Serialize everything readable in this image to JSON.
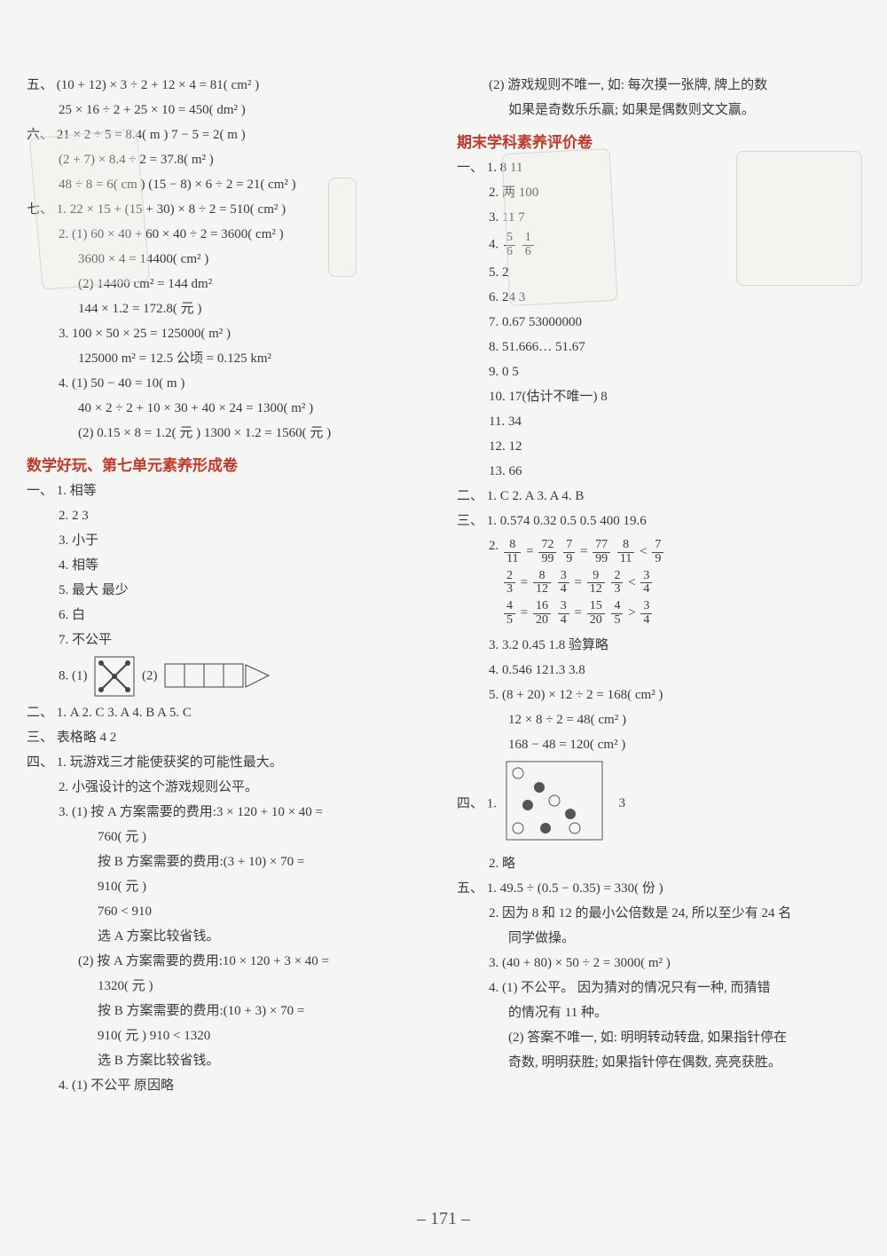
{
  "page_number": "– 171 –",
  "left": {
    "sec5_label": "五、",
    "sec5_a": "(10 + 12) × 3 ÷ 2 + 12 × 4 = 81( cm² )",
    "sec5_b": "25 × 16 ÷ 2 + 25 × 10 = 450( dm² )",
    "sec6_label": "六、",
    "sec6_a": "21 × 2 ÷ 5 = 8.4( m )    7 − 5 = 2( m )",
    "sec6_b": "(2 + 7) × 8.4 ÷ 2 = 37.8( m² )",
    "sec6_c": "48 ÷ 8 = 6( cm )    (15 − 8) × 6 ÷ 2 = 21( cm² )",
    "sec7_label": "七、",
    "sec7_1": "1.  22 × 15 + (15 + 30) × 8 ÷ 2 = 510( cm² )",
    "sec7_2a": "2.  (1) 60 × 40 + 60 × 40 ÷ 2 = 3600( cm² )",
    "sec7_2b": "3600 × 4 = 14400( cm² )",
    "sec7_2c": "(2) 14400 cm² = 144 dm²",
    "sec7_2d": "144 × 1.2 = 172.8( 元 )",
    "sec7_3a": "3.  100 × 50 × 25 = 125000( m² )",
    "sec7_3b": "125000 m² = 12.5 公顷 = 0.125 km²",
    "sec7_4a": "4.  (1) 50 − 40 = 10( m )",
    "sec7_4b": "40 × 2 ÷ 2 + 10 × 30 + 40 × 24 = 1300( m² )",
    "sec7_4c": "(2) 0.15 × 8 = 1.2( 元 )    1300 × 1.2 = 1560( 元 )",
    "heading": "数学好玩、第七单元素养形成卷",
    "p1_label": "一、",
    "p1_1": "1.  相等",
    "p1_2": "2.  2  3",
    "p1_3": "3.  小于",
    "p1_4": "4.  相等",
    "p1_5": "5.  最大  最少",
    "p1_6": "6.  白",
    "p1_7": "7.  不公平",
    "p1_8": "8.  (1)",
    "p1_8b": "(2)",
    "p2_label": "二、",
    "p2": "1. A  2. C  3. A  4. B  A  5. C",
    "p3_label": "三、",
    "p3": "表格略  4  2",
    "p4_label": "四、",
    "p4_1": "1.  玩游戏三才能使获奖的可能性最大。",
    "p4_2": "2.  小强设计的这个游戏规则公平。",
    "p4_3a": "3.  (1) 按 A 方案需要的费用:3 × 120 + 10 × 40 =",
    "p4_3b": "760( 元 )",
    "p4_3c": "按 B 方案需要的费用:(3 + 10) × 70 =",
    "p4_3d": "910( 元 )",
    "p4_3e": "760 < 910",
    "p4_3f": "选 A 方案比较省钱。",
    "p4_3g": "(2) 按 A 方案需要的费用:10 × 120 + 3 × 40 =",
    "p4_3h": "1320( 元 )",
    "p4_3i": "按 B 方案需要的费用:(10 + 3) × 70 =",
    "p4_3j": "910( 元 )    910 < 1320",
    "p4_3k": "选 B 方案比较省钱。",
    "p4_4": "4.  (1) 不公平    原因略"
  },
  "right": {
    "top_a": "(2) 游戏规则不唯一, 如: 每次摸一张牌, 牌上的数",
    "top_b": "如果是奇数乐乐赢; 如果是偶数则文文赢。",
    "heading": "期末学科素养评价卷",
    "s1_label": "一、",
    "s1_1": "1.  8  11",
    "s1_2": "2.  两  100",
    "s1_3": "3.  11  7",
    "s1_4": "4.",
    "s1_4_fracs": [
      [
        "5",
        "6"
      ],
      [
        "1",
        "6"
      ]
    ],
    "s1_5": "5.  2",
    "s1_6": "6.  24  3",
    "s1_7": "7.  0.67  53000000",
    "s1_8": "8.  51.666…  51.67",
    "s1_9": "9.  0  5",
    "s1_10": "10.  17(估计不唯一)  8",
    "s1_11": "11.  34",
    "s1_12": "12.  12",
    "s1_13": "13.  66",
    "s2_label": "二、",
    "s2": "1. C  2. A  3. A  4. B",
    "s3_label": "三、",
    "s3_1": "1.  0.574  0.32  0.5  0.5  400  19.6",
    "s3_2": "2.",
    "s3_2_rows": [
      [
        [
          "8",
          "11"
        ],
        "=",
        [
          "72",
          "99"
        ],
        "  ",
        [
          "7",
          "9"
        ],
        "=",
        [
          "77",
          "99"
        ],
        "  ",
        [
          "8",
          "11"
        ],
        "<",
        [
          "7",
          "9"
        ]
      ],
      [
        [
          "2",
          "3"
        ],
        "=",
        [
          "8",
          "12"
        ],
        "  ",
        [
          "3",
          "4"
        ],
        "=",
        [
          "9",
          "12"
        ],
        "  ",
        [
          "2",
          "3"
        ],
        "<",
        [
          "3",
          "4"
        ]
      ],
      [
        [
          "4",
          "5"
        ],
        "=",
        [
          "16",
          "20"
        ],
        "  ",
        [
          "3",
          "4"
        ],
        "=",
        [
          "15",
          "20"
        ],
        "  ",
        [
          "4",
          "5"
        ],
        ">",
        [
          "3",
          "4"
        ]
      ]
    ],
    "s3_3": "3.  3.2  0.45  1.8  验算略",
    "s3_4": "4.  0.546  121.3  3.8",
    "s3_5a": "5.  (8 + 20) × 12 ÷ 2 = 168( cm² )",
    "s3_5b": "12 × 8 ÷ 2 = 48( cm² )",
    "s3_5c": "168 − 48 = 120( cm² )",
    "s4_label": "四、",
    "s4_1": "1.",
    "s4_1_side": "3",
    "s4_2": "2.  略",
    "s5_label": "五、",
    "s5_1": "1.  49.5 ÷ (0.5 − 0.35) = 330( 份 )",
    "s5_2a": "2.  因为 8 和 12 的最小公倍数是 24, 所以至少有 24 名",
    "s5_2b": "同学做操。",
    "s5_3": "3.  (40 + 80) × 50 ÷ 2 = 3000( m² )",
    "s5_4a": "4.  (1) 不公平。  因为猜对的情况只有一种, 而猜错",
    "s5_4b": "的情况有 11 种。",
    "s5_4c": "(2) 答案不唯一, 如: 明明转动转盘, 如果指针停在",
    "s5_4d": "奇数, 明明获胜; 如果指针停在偶数, 亮亮获胜。"
  },
  "colors": {
    "heading": "#c0392b",
    "text": "#3a3a3a",
    "bg": "#f5f5f3",
    "watermark": "#d6d6d2"
  }
}
